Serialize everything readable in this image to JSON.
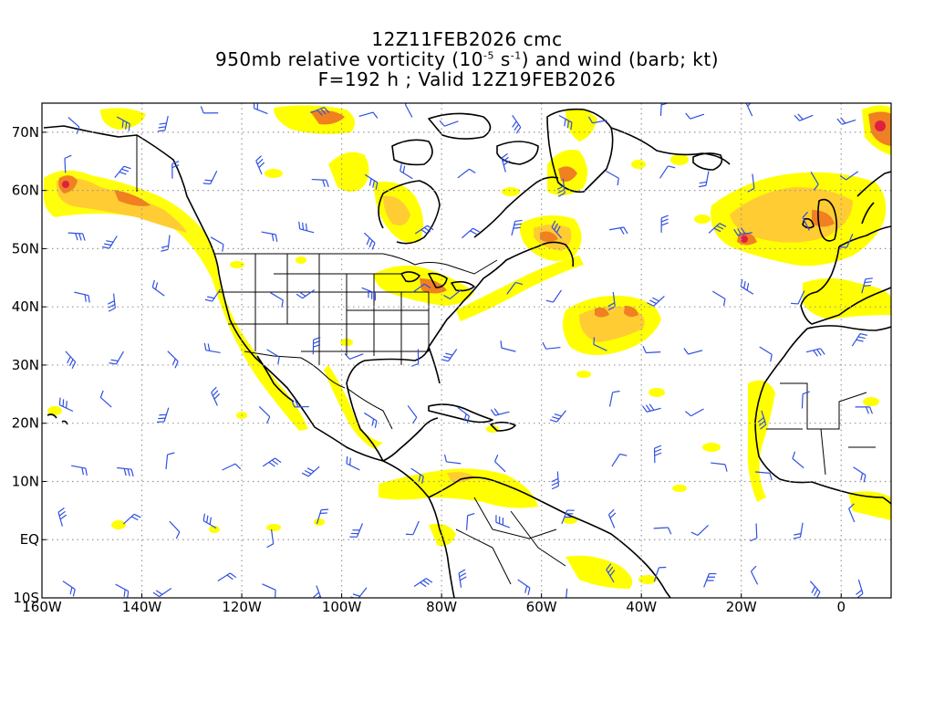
{
  "title": {
    "line1": "12Z11FEB2026 cmc",
    "line2_before": "950mb relative vorticity (10",
    "line2_exp1": "-5",
    "line2_mid": " s",
    "line2_exp2": "-1",
    "line2_after": ") and wind (barb; kt)",
    "line3": "F=192 h ; Valid 12Z19FEB2026"
  },
  "map": {
    "projection": "cylindrical equidistant",
    "lon_range": [
      -160,
      10
    ],
    "lat_range": [
      -10,
      75
    ],
    "grid": "dotted",
    "x_ticks": [
      "160W",
      "140W",
      "120W",
      "100W",
      "80W",
      "60W",
      "40W",
      "20W",
      "0"
    ],
    "x_tick_lons": [
      -160,
      -140,
      -120,
      -100,
      -80,
      -60,
      -40,
      -20,
      0
    ],
    "y_ticks": [
      "10S",
      "EQ",
      "10N",
      "20N",
      "30N",
      "40N",
      "50N",
      "60N",
      "70N"
    ],
    "y_tick_lats": [
      -10,
      0,
      10,
      20,
      30,
      40,
      50,
      60,
      70
    ],
    "colors": {
      "vort_low": "#ffff00",
      "vort_mid": "#ffcc33",
      "vort_high": "#f08020",
      "vort_max": "#e02040",
      "coast": "#000000",
      "barb": "#3050e0",
      "grid": "#999999"
    }
  }
}
